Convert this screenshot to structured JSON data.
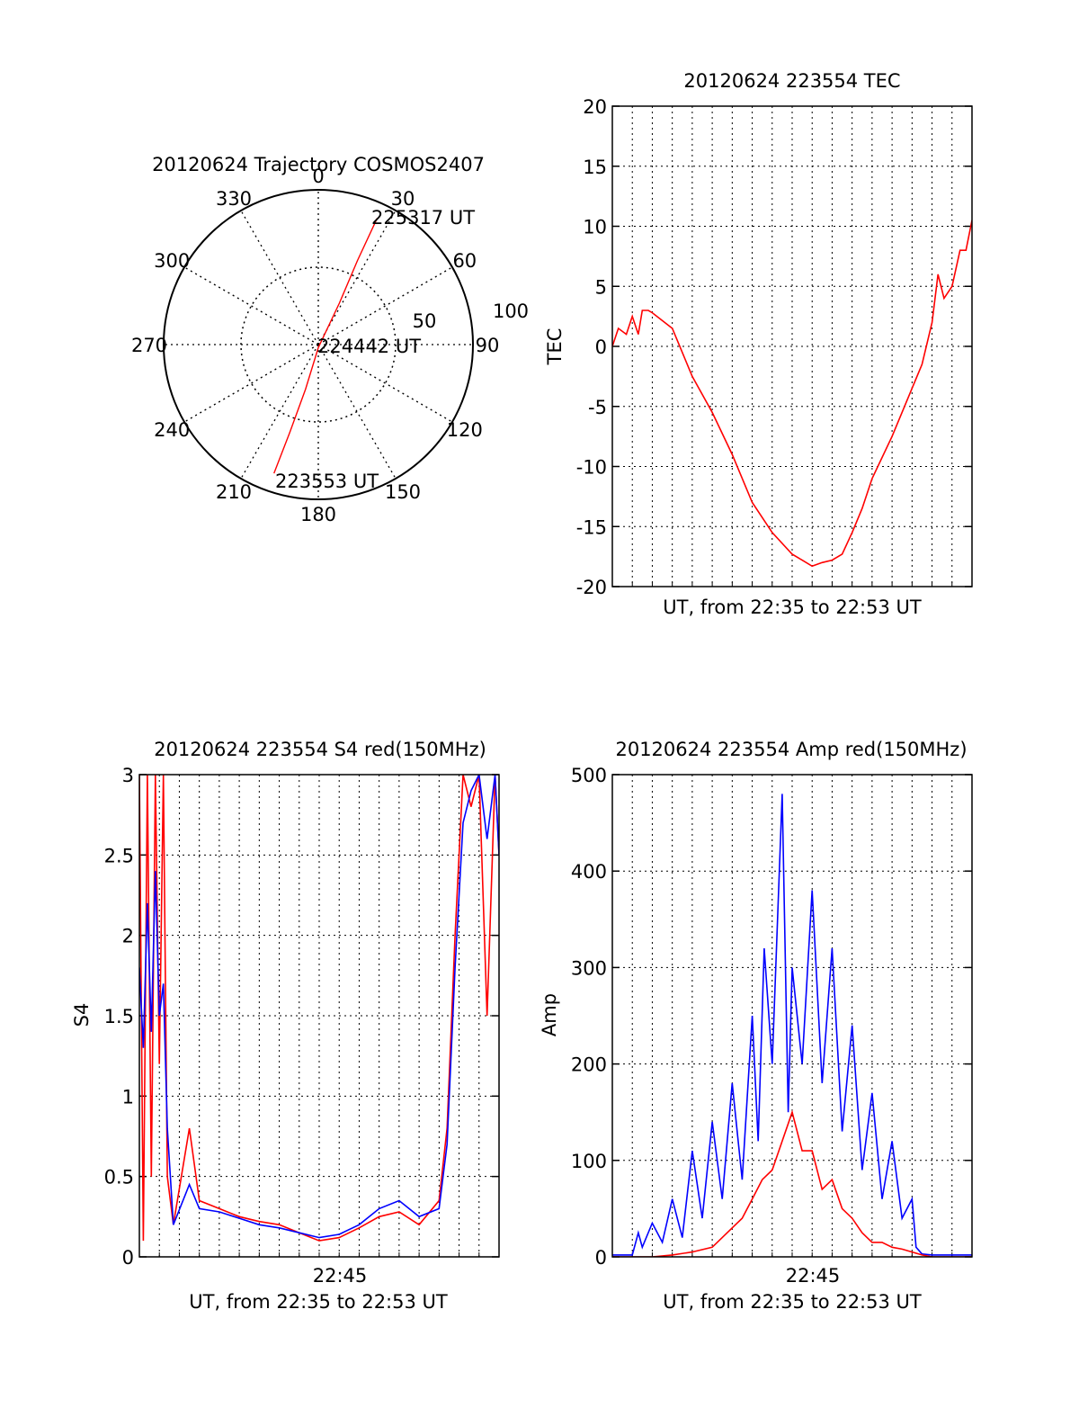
{
  "colors": {
    "red": "#ff0000",
    "blue": "#0000ff",
    "axis": "#000000",
    "grid": "#000000"
  },
  "chart_data": [
    {
      "id": "polar",
      "type": "polar",
      "title": "20120624 Trajectory COSMOS2407",
      "angle_labels": [
        "0",
        "30",
        "60",
        "90",
        "120",
        "150",
        "180",
        "210",
        "240",
        "270",
        "300",
        "330"
      ],
      "radial_labels": [
        "50",
        "100"
      ],
      "rlim": [
        0,
        100
      ],
      "grid": true,
      "trajectory": {
        "color": "red",
        "points": [
          {
            "az": 199,
            "r": 88
          },
          {
            "az": 198,
            "r": 60
          },
          {
            "az": 196,
            "r": 30
          },
          {
            "az": 180,
            "r": 2
          },
          {
            "az": 27,
            "r": 30
          },
          {
            "az": 25,
            "r": 60
          },
          {
            "az": 25,
            "r": 90
          }
        ]
      },
      "annotations": [
        {
          "text": "223553 UT",
          "az": 199,
          "r": 88
        },
        {
          "text": "224442 UT",
          "az": 90,
          "r": 0
        },
        {
          "text": "225317 UT",
          "az": 25,
          "r": 90
        }
      ]
    },
    {
      "id": "tec",
      "type": "line",
      "title": "20120624 223554 TEC",
      "xlabel": "UT, from 22:35 to 22:53 UT",
      "ylabel": "TEC",
      "ylim": [
        -20,
        20
      ],
      "yticks": [
        "20",
        "15",
        "10",
        "5",
        "0",
        "-5",
        "-10",
        "-15",
        "-20"
      ],
      "xticks": [],
      "grid": true,
      "series": [
        {
          "color": "red",
          "x": [
            0,
            0.3,
            0.7,
            1,
            1.3,
            1.5,
            1.8,
            2,
            3,
            4,
            5,
            6,
            7,
            8,
            9,
            9.5,
            10,
            10.5,
            11,
            11.5,
            12,
            12.5,
            13,
            14,
            15,
            15.5,
            16,
            16.3,
            16.6,
            17,
            17.4,
            17.7,
            18
          ],
          "y": [
            0,
            1.5,
            1,
            2.5,
            1,
            3,
            3,
            2.8,
            1.5,
            -2.5,
            -5.5,
            -9,
            -13,
            -15.5,
            -17.3,
            -17.8,
            -18.3,
            -18,
            -17.8,
            -17.3,
            -15.5,
            -13.5,
            -11,
            -7.5,
            -3.5,
            -1.5,
            2,
            6,
            4,
            5,
            8,
            8,
            10.5
          ]
        }
      ]
    },
    {
      "id": "s4",
      "type": "line",
      "title": "20120624 223554 S4 red(150MHz)",
      "xlabel": "UT, from 22:35 to 22:53 UT",
      "ylabel": "S4",
      "ylim": [
        0,
        3
      ],
      "yticks": [
        "3",
        "2.5",
        "2",
        "1.5",
        "1",
        "0.5",
        "0"
      ],
      "xticks": [
        "22:45"
      ],
      "grid": true,
      "series": [
        {
          "color": "red",
          "x": [
            0,
            0.2,
            0.4,
            0.6,
            0.8,
            1.0,
            1.2,
            1.4,
            1.7,
            2.5,
            3,
            4,
            5,
            6,
            7,
            8,
            9,
            10,
            11,
            12,
            13,
            14,
            15,
            15.4,
            15.8,
            16.2,
            16.6,
            17,
            17.4,
            17.8,
            18
          ],
          "y": [
            3,
            0.1,
            3,
            0.5,
            3,
            1.2,
            3,
            0.5,
            0.2,
            0.8,
            0.35,
            0.3,
            0.25,
            0.22,
            0.2,
            0.15,
            0.1,
            0.12,
            0.18,
            0.25,
            0.28,
            0.2,
            0.35,
            0.8,
            2.0,
            3,
            2.8,
            3,
            1.5,
            3,
            2.5
          ]
        },
        {
          "color": "blue",
          "x": [
            0,
            0.2,
            0.4,
            0.6,
            0.8,
            1.0,
            1.2,
            1.4,
            1.7,
            2.5,
            3,
            4,
            5,
            6,
            7,
            8,
            9,
            10,
            11,
            12,
            13,
            14,
            15,
            15.4,
            15.8,
            16.2,
            16.6,
            17,
            17.4,
            17.8,
            18
          ],
          "y": [
            1.8,
            1.3,
            2.2,
            1.4,
            2.4,
            1.5,
            1.7,
            0.8,
            0.2,
            0.45,
            0.3,
            0.28,
            0.24,
            0.2,
            0.18,
            0.15,
            0.12,
            0.14,
            0.2,
            0.3,
            0.35,
            0.25,
            0.3,
            0.7,
            1.8,
            2.7,
            2.9,
            3,
            2.6,
            3,
            2.5
          ]
        }
      ]
    },
    {
      "id": "amp",
      "type": "line",
      "title": "20120624 223554 Amp red(150MHz)",
      "xlabel": "UT, from 22:35 to 22:53 UT",
      "ylabel": "Amp",
      "ylim": [
        0,
        500
      ],
      "yticks": [
        "500",
        "400",
        "300",
        "200",
        "100",
        "0"
      ],
      "xticks": [
        "22:45"
      ],
      "grid": true,
      "series": [
        {
          "color": "blue",
          "x": [
            0,
            1,
            1.3,
            1.5,
            2,
            2.5,
            3,
            3.5,
            4,
            4.5,
            5,
            5.5,
            6,
            6.5,
            7,
            7.3,
            7.6,
            8,
            8.5,
            8.8,
            9,
            9.5,
            10,
            10.5,
            11,
            11.5,
            12,
            12.5,
            13,
            13.5,
            14,
            14.5,
            15,
            15.2,
            15.5,
            16,
            18
          ],
          "y": [
            2,
            2,
            25,
            10,
            35,
            15,
            60,
            20,
            110,
            40,
            140,
            60,
            180,
            80,
            250,
            120,
            320,
            200,
            480,
            150,
            300,
            200,
            380,
            180,
            320,
            130,
            240,
            90,
            170,
            60,
            120,
            40,
            60,
            10,
            3,
            2,
            2
          ]
        },
        {
          "color": "red",
          "x": [
            0,
            2,
            3,
            4,
            5,
            5.5,
            6,
            6.5,
            7,
            7.5,
            8,
            8.5,
            9,
            9.5,
            10,
            10.5,
            11,
            11.5,
            12,
            12.5,
            13,
            13.5,
            14,
            14.5,
            15,
            15.5,
            16,
            18
          ],
          "y": [
            0,
            0,
            2,
            5,
            10,
            20,
            30,
            40,
            60,
            80,
            90,
            120,
            150,
            110,
            110,
            70,
            80,
            50,
            40,
            25,
            15,
            15,
            10,
            8,
            5,
            2,
            0,
            0
          ]
        }
      ]
    }
  ]
}
